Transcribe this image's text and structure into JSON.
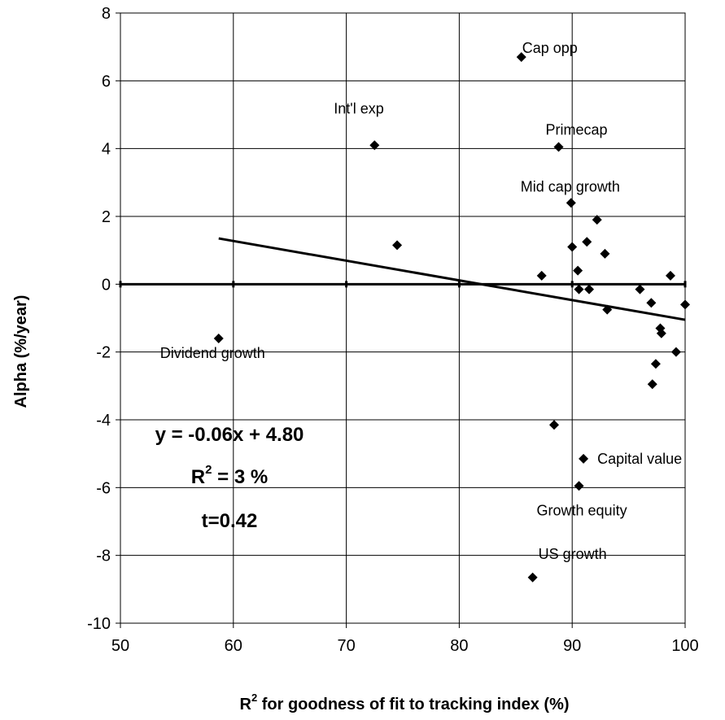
{
  "chart_data": {
    "type": "scatter",
    "xlabel": "R",
    "xlabel_superscript": "2",
    "xlabel_suffix": " for goodness of fit to tracking index (%)",
    "ylabel": "Alpha (%/year)",
    "xlim": [
      50,
      100
    ],
    "ylim": [
      -10,
      8
    ],
    "xticks": [
      50,
      60,
      70,
      80,
      90,
      100
    ],
    "yticks": [
      -10,
      -8,
      -6,
      -4,
      -2,
      0,
      2,
      4,
      6,
      8
    ],
    "grid": true,
    "points": [
      {
        "x": 58.7,
        "y": -1.6,
        "label": "Dividend growth"
      },
      {
        "x": 72.5,
        "y": 4.1,
        "label": "Int'l exp"
      },
      {
        "x": 74.5,
        "y": 1.15,
        "label": ""
      },
      {
        "x": 85.5,
        "y": 6.7,
        "label": "Cap opp"
      },
      {
        "x": 86.5,
        "y": -8.65,
        "label": "US growth"
      },
      {
        "x": 87.3,
        "y": 0.25,
        "label": ""
      },
      {
        "x": 88.4,
        "y": -4.15,
        "label": ""
      },
      {
        "x": 88.8,
        "y": 4.05,
        "label": "Primecap"
      },
      {
        "x": 89.9,
        "y": 2.4,
        "label": "Mid cap growth"
      },
      {
        "x": 90.0,
        "y": 1.1,
        "label": ""
      },
      {
        "x": 90.5,
        "y": 0.4,
        "label": ""
      },
      {
        "x": 90.6,
        "y": -0.15,
        "label": ""
      },
      {
        "x": 90.6,
        "y": -5.95,
        "label": "Growth equity"
      },
      {
        "x": 91.0,
        "y": -5.15,
        "label": "Capital value"
      },
      {
        "x": 91.3,
        "y": 1.25,
        "label": ""
      },
      {
        "x": 91.5,
        "y": -0.15,
        "label": ""
      },
      {
        "x": 92.2,
        "y": 1.9,
        "label": ""
      },
      {
        "x": 92.9,
        "y": 0.9,
        "label": ""
      },
      {
        "x": 93.1,
        "y": -0.75,
        "label": ""
      },
      {
        "x": 96.0,
        "y": -0.15,
        "label": ""
      },
      {
        "x": 97.0,
        "y": -0.55,
        "label": ""
      },
      {
        "x": 97.1,
        "y": -2.95,
        "label": ""
      },
      {
        "x": 97.4,
        "y": -2.35,
        "label": ""
      },
      {
        "x": 97.8,
        "y": -1.3,
        "label": ""
      },
      {
        "x": 97.9,
        "y": -1.45,
        "label": ""
      },
      {
        "x": 98.7,
        "y": 0.25,
        "label": ""
      },
      {
        "x": 99.2,
        "y": -2.0,
        "label": ""
      },
      {
        "x": 100.0,
        "y": -0.6,
        "label": ""
      }
    ],
    "trendline": {
      "x": [
        58.7,
        100
      ],
      "y": [
        1.35,
        -1.05
      ]
    },
    "zero_line_y": 0,
    "annotations": {
      "equation": "y = -0.06x + 4.80",
      "r2_prefix": "R",
      "r2_superscript": "2",
      "r2_suffix": " = 3 %",
      "t_stat": "t=0.42"
    },
    "colors": {
      "marker": "#000000",
      "grid": "#000000",
      "line": "#000000",
      "background": "#ffffff"
    }
  }
}
